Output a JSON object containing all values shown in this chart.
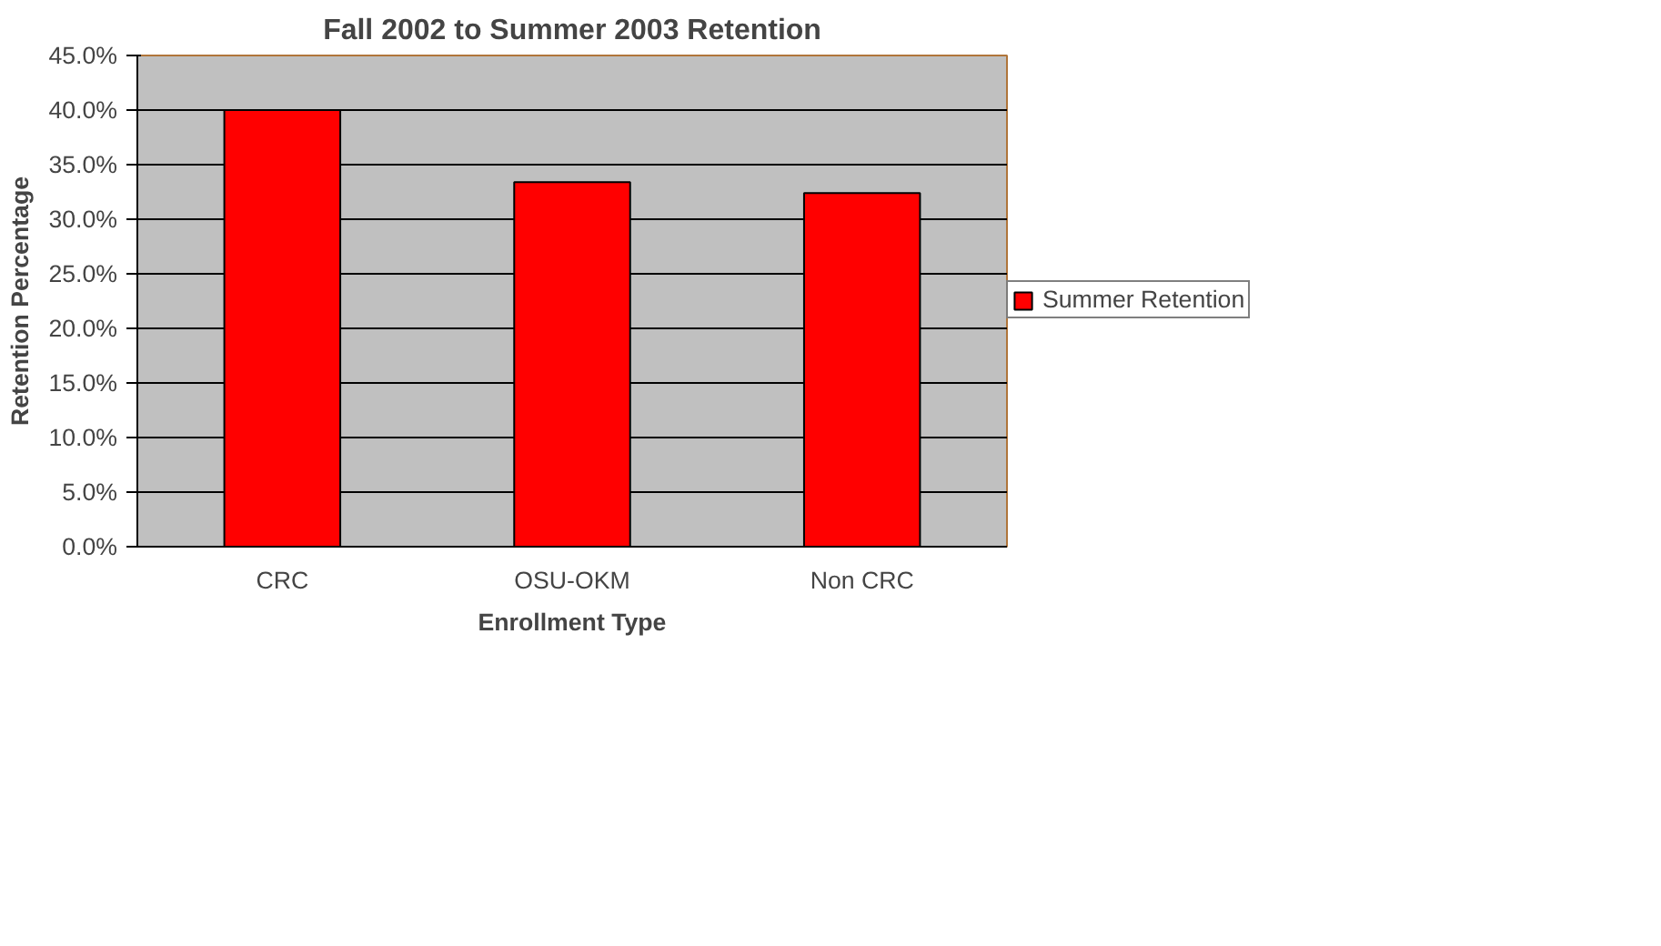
{
  "chart_data": {
    "type": "bar",
    "title": "Fall 2002 to Summer 2003 Retention",
    "xlabel": "Enrollment Type",
    "ylabel": "Retention Percentage",
    "categories": [
      "CRC",
      "OSU-OKM",
      "Non CRC"
    ],
    "series": [
      {
        "name": "Summer Retention",
        "color": "#ff0000",
        "values": [
          40.0,
          33.4,
          32.4
        ]
      }
    ],
    "ylim": [
      0,
      45
    ],
    "yticks": [
      {
        "value": 0,
        "label": "0.0%"
      },
      {
        "value": 5,
        "label": "5.0%"
      },
      {
        "value": 10,
        "label": "10.0%"
      },
      {
        "value": 15,
        "label": "15.0%"
      },
      {
        "value": 20,
        "label": "20.0%"
      },
      {
        "value": 25,
        "label": "25.0%"
      },
      {
        "value": 30,
        "label": "30.0%"
      },
      {
        "value": 35,
        "label": "35.0%"
      },
      {
        "value": 40,
        "label": "40.0%"
      },
      {
        "value": 45,
        "label": "45.0%"
      }
    ],
    "grid": "y",
    "legend": "right"
  }
}
